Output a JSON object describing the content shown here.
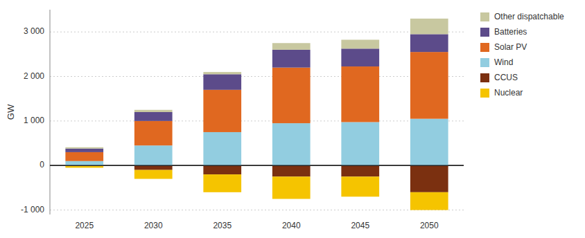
{
  "chart_data": {
    "type": "bar",
    "stacked": true,
    "ylabel": "GW",
    "categories": [
      "2025",
      "2030",
      "2035",
      "2040",
      "2045",
      "2050"
    ],
    "series": [
      {
        "name": "Other dispatchable",
        "color": "#c8c8a0",
        "values": [
          30,
          50,
          50,
          150,
          200,
          350
        ]
      },
      {
        "name": "Batteries",
        "color": "#5c4b8a",
        "values": [
          80,
          200,
          350,
          400,
          400,
          400
        ]
      },
      {
        "name": "Solar PV",
        "color": "#e06820",
        "values": [
          200,
          550,
          950,
          1250,
          1250,
          1500
        ]
      },
      {
        "name": "Wind",
        "color": "#92cde0",
        "values": [
          100,
          450,
          750,
          950,
          975,
          1050
        ]
      },
      {
        "name": "CCUS",
        "color": "#7b3010",
        "values": [
          0,
          -100,
          -200,
          -250,
          -250,
          -600
        ]
      },
      {
        "name": "Nuclear",
        "color": "#f5c400",
        "values": [
          -50,
          -200,
          -400,
          -500,
          -450,
          -400
        ]
      }
    ],
    "ylim": [
      -1100,
      3500
    ],
    "yticks": [
      {
        "value": -1000,
        "label": "-1 000"
      },
      0,
      {
        "value": 1000,
        "label": "1 000"
      },
      {
        "value": 2000,
        "label": "2 000"
      },
      {
        "value": 3000,
        "label": "3 000"
      }
    ],
    "grid": true,
    "legend": "right"
  }
}
